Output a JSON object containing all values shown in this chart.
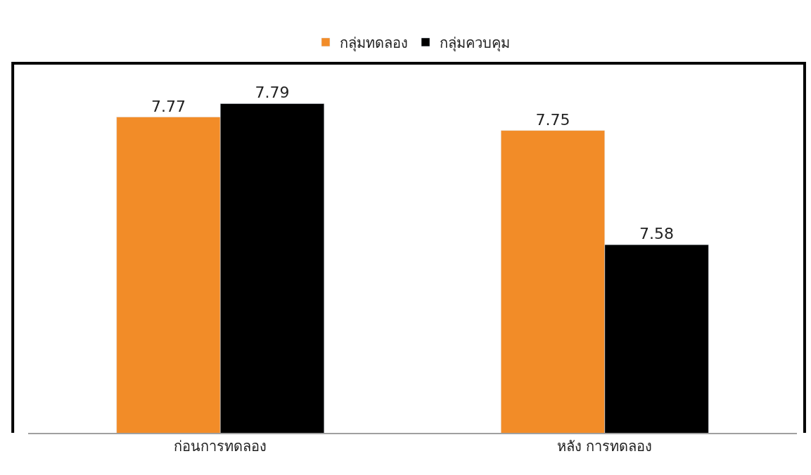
{
  "chart_data": {
    "type": "bar",
    "categories": [
      "ก่อนการทดลอง",
      "หลัง การทดลอง"
    ],
    "series": [
      {
        "name": "กลุ่มทดลอง",
        "color": "#f28c28",
        "values": [
          7.77,
          7.75
        ]
      },
      {
        "name": "กลุ่มควบคุม",
        "color": "#000000",
        "values": [
          7.79,
          7.58
        ]
      }
    ],
    "ylim": [
      7.3,
      7.85
    ],
    "tick_labels": "x",
    "data_labels": true,
    "legend": "top"
  }
}
